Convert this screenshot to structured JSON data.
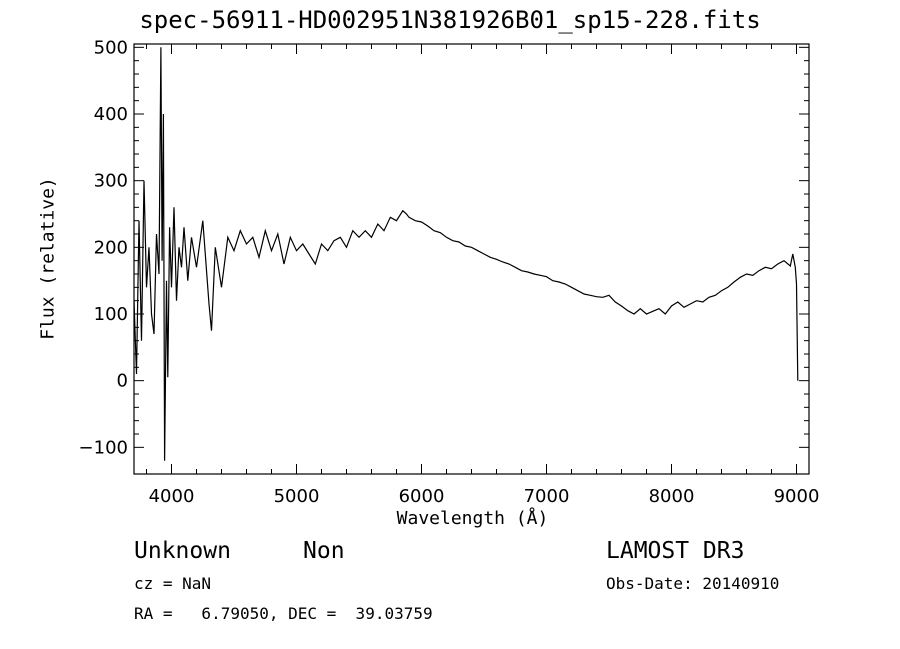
{
  "chart_data": {
    "type": "line",
    "title": "spec-56911-HD002951N381926B01_sp15-228.fits",
    "xlabel": "Wavelength (Å)",
    "ylabel": "Flux (relative)",
    "xlim": [
      3700,
      9100
    ],
    "ylim": [
      -140,
      505
    ],
    "xticks": [
      4000,
      5000,
      6000,
      7000,
      8000,
      9000
    ],
    "xtick_labels": [
      "4000",
      "5000",
      "6000",
      "7000",
      "8000",
      "9000"
    ],
    "yticks": [
      -100,
      0,
      100,
      200,
      300,
      400,
      500
    ],
    "ytick_labels": [
      "−100",
      "0",
      "100",
      "200",
      "300",
      "400",
      "500"
    ],
    "grid": false,
    "series": [
      {
        "name": "flux",
        "x": [
          3700,
          3720,
          3740,
          3760,
          3780,
          3800,
          3820,
          3840,
          3860,
          3880,
          3900,
          3915,
          3925,
          3935,
          3945,
          3960,
          3970,
          3985,
          4000,
          4020,
          4040,
          4060,
          4080,
          4100,
          4130,
          4160,
          4200,
          4250,
          4300,
          4320,
          4350,
          4400,
          4450,
          4500,
          4550,
          4600,
          4650,
          4700,
          4750,
          4800,
          4850,
          4900,
          4950,
          5000,
          5050,
          5100,
          5150,
          5200,
          5250,
          5300,
          5350,
          5400,
          5450,
          5500,
          5550,
          5600,
          5650,
          5700,
          5750,
          5800,
          5850,
          5880,
          5900,
          5950,
          6000,
          6050,
          6100,
          6150,
          6200,
          6250,
          6300,
          6350,
          6400,
          6450,
          6500,
          6550,
          6600,
          6650,
          6700,
          6750,
          6800,
          6850,
          6900,
          6950,
          7000,
          7050,
          7100,
          7150,
          7200,
          7250,
          7300,
          7350,
          7400,
          7450,
          7500,
          7550,
          7600,
          7650,
          7700,
          7750,
          7800,
          7850,
          7900,
          7950,
          8000,
          8050,
          8100,
          8150,
          8200,
          8250,
          8300,
          8350,
          8400,
          8450,
          8500,
          8550,
          8600,
          8650,
          8700,
          8750,
          8800,
          8850,
          8900,
          8950,
          8970,
          8990,
          9000,
          9010
        ],
        "values": [
          120,
          10,
          240,
          60,
          300,
          140,
          200,
          100,
          70,
          220,
          160,
          500,
          180,
          400,
          -120,
          150,
          5,
          230,
          140,
          260,
          120,
          200,
          170,
          230,
          150,
          215,
          170,
          240,
          115,
          75,
          200,
          140,
          215,
          195,
          225,
          205,
          215,
          185,
          225,
          195,
          220,
          175,
          215,
          195,
          205,
          190,
          175,
          205,
          195,
          210,
          215,
          200,
          225,
          215,
          225,
          215,
          235,
          225,
          245,
          240,
          255,
          250,
          245,
          240,
          238,
          232,
          225,
          222,
          215,
          210,
          208,
          202,
          200,
          195,
          190,
          185,
          182,
          178,
          175,
          170,
          165,
          163,
          160,
          158,
          156,
          150,
          148,
          145,
          140,
          135,
          130,
          128,
          126,
          125,
          128,
          118,
          112,
          105,
          100,
          108,
          100,
          104,
          108,
          100,
          112,
          118,
          110,
          115,
          120,
          118,
          125,
          128,
          135,
          140,
          148,
          155,
          160,
          158,
          165,
          170,
          168,
          175,
          180,
          172,
          190,
          170,
          145,
          0
        ]
      }
    ]
  },
  "annotations": {
    "object_class": "Unknown",
    "object_subclass": "Non",
    "survey": "LAMOST DR3",
    "redshift": "cz = NaN",
    "obs_date": "Obs-Date: 20140910",
    "coords": "RA =   6.79050, DEC =  39.03759"
  }
}
